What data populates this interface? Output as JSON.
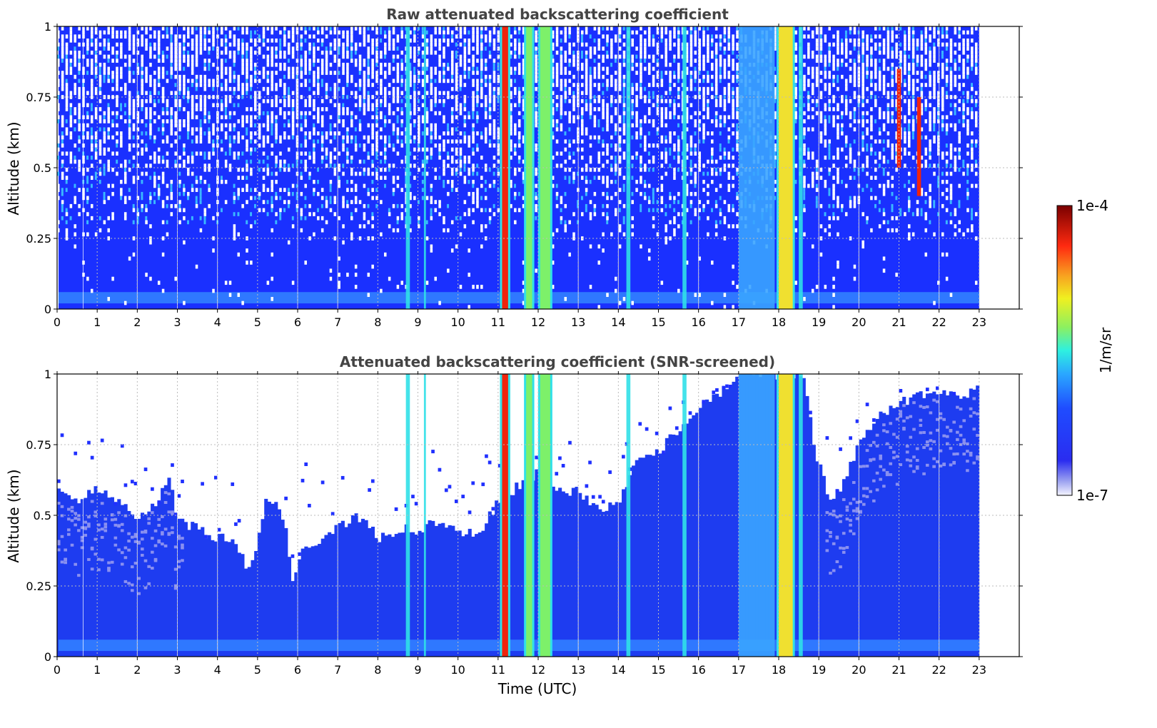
{
  "chart_data": [
    {
      "type": "heatmap",
      "title": "Raw attenuated backscattering coefficient",
      "xlabel": "",
      "ylabel": "Altitude (km)",
      "xlim": [
        0,
        24
      ],
      "ylim": [
        0,
        1
      ],
      "x_ticks": [
        "0",
        "1",
        "2",
        "3",
        "4",
        "5",
        "6",
        "7",
        "8",
        "9",
        "10",
        "11",
        "12",
        "13",
        "14",
        "15",
        "16",
        "17",
        "18",
        "19",
        "20",
        "21",
        "22",
        "23"
      ],
      "y_ticks": [
        "0",
        "0.25",
        "0.5",
        "0.75",
        "1"
      ],
      "data_end_hour": 23,
      "grid": true,
      "noise_top_fraction": 1.0,
      "features": [
        {
          "kind": "strong-column",
          "start": 11.1,
          "end": 11.25,
          "level": "red"
        },
        {
          "kind": "strong-column",
          "start": 11.7,
          "end": 11.85,
          "level": "green"
        },
        {
          "kind": "strong-column",
          "start": 12.05,
          "end": 12.3,
          "level": "green"
        },
        {
          "kind": "strong-column",
          "start": 18.0,
          "end": 18.35,
          "level": "yellow"
        },
        {
          "kind": "column",
          "start": 8.7,
          "end": 8.8,
          "level": "cyan"
        },
        {
          "kind": "column",
          "start": 9.15,
          "end": 9.2,
          "level": "cyan"
        },
        {
          "kind": "column",
          "start": 14.2,
          "end": 14.3,
          "level": "cyan"
        },
        {
          "kind": "column",
          "start": 15.6,
          "end": 15.7,
          "level": "cyan"
        },
        {
          "kind": "column",
          "start": 17.0,
          "end": 17.9,
          "level": "light-blue"
        },
        {
          "kind": "column",
          "start": 18.5,
          "end": 18.6,
          "level": "cyan"
        },
        {
          "kind": "cloud-streak",
          "start": 20.95,
          "end": 21.05,
          "ymin": 0.5,
          "ymax": 0.85,
          "level": "red"
        },
        {
          "kind": "cloud-streak",
          "start": 21.45,
          "end": 21.55,
          "ymin": 0.4,
          "ymax": 0.75,
          "level": "red"
        }
      ]
    },
    {
      "type": "heatmap",
      "title": "Attenuated backscattering coefficient (SNR-screened)",
      "xlabel": "Time (UTC)",
      "ylabel": "Altitude (km)",
      "xlim": [
        0,
        24
      ],
      "ylim": [
        0,
        1
      ],
      "x_ticks": [
        "0",
        "1",
        "2",
        "3",
        "4",
        "5",
        "6",
        "7",
        "8",
        "9",
        "10",
        "11",
        "12",
        "13",
        "14",
        "15",
        "16",
        "17",
        "18",
        "19",
        "20",
        "21",
        "22",
        "23"
      ],
      "y_ticks": [
        "0",
        "0.25",
        "0.5",
        "0.75",
        "1"
      ],
      "data_end_hour": 23,
      "grid": true,
      "screen_top_km": [
        [
          0,
          0.62
        ],
        [
          0.5,
          0.55
        ],
        [
          1,
          0.6
        ],
        [
          1.5,
          0.55
        ],
        [
          2,
          0.5
        ],
        [
          2.5,
          0.55
        ],
        [
          2.8,
          0.65
        ],
        [
          3,
          0.48
        ],
        [
          3.5,
          0.45
        ],
        [
          4,
          0.42
        ],
        [
          4.5,
          0.4
        ],
        [
          4.8,
          0.3
        ],
        [
          5,
          0.4
        ],
        [
          5.2,
          0.55
        ],
        [
          5.5,
          0.55
        ],
        [
          5.7,
          0.45
        ],
        [
          5.9,
          0.25
        ],
        [
          6.1,
          0.38
        ],
        [
          6.5,
          0.4
        ],
        [
          7,
          0.45
        ],
        [
          7.5,
          0.5
        ],
        [
          8,
          0.42
        ],
        [
          8.5,
          0.45
        ],
        [
          9,
          0.45
        ],
        [
          9.5,
          0.48
        ],
        [
          10,
          0.45
        ],
        [
          10.5,
          0.42
        ],
        [
          11,
          0.55
        ],
        [
          12,
          0.65
        ],
        [
          12.5,
          0.6
        ],
        [
          13,
          0.58
        ],
        [
          13.5,
          0.52
        ],
        [
          14,
          0.55
        ],
        [
          14.5,
          0.7
        ],
        [
          15,
          0.72
        ],
        [
          15.5,
          0.8
        ],
        [
          16,
          0.88
        ],
        [
          16.5,
          0.92
        ],
        [
          17,
          1.0
        ],
        [
          18.6,
          1.0
        ],
        [
          18.8,
          0.82
        ],
        [
          19,
          0.68
        ],
        [
          19.3,
          0.55
        ],
        [
          19.6,
          0.6
        ],
        [
          20,
          0.75
        ],
        [
          20.5,
          0.85
        ],
        [
          21,
          0.9
        ],
        [
          21.5,
          0.92
        ],
        [
          22,
          0.95
        ],
        [
          22.5,
          0.92
        ],
        [
          23,
          0.95
        ]
      ],
      "features": [
        {
          "kind": "strong-column",
          "start": 11.1,
          "end": 11.25,
          "level": "red"
        },
        {
          "kind": "strong-column",
          "start": 11.7,
          "end": 11.85,
          "level": "green"
        },
        {
          "kind": "strong-column",
          "start": 12.05,
          "end": 12.3,
          "level": "green"
        },
        {
          "kind": "strong-column",
          "start": 18.0,
          "end": 18.35,
          "level": "yellow"
        },
        {
          "kind": "column",
          "start": 8.7,
          "end": 8.8,
          "level": "cyan"
        },
        {
          "kind": "column",
          "start": 9.15,
          "end": 9.2,
          "level": "cyan"
        },
        {
          "kind": "column",
          "start": 14.2,
          "end": 14.3,
          "level": "cyan"
        },
        {
          "kind": "column",
          "start": 15.6,
          "end": 15.7,
          "level": "cyan"
        },
        {
          "kind": "column",
          "start": 17.0,
          "end": 17.9,
          "level": "light-blue"
        },
        {
          "kind": "column",
          "start": 18.5,
          "end": 18.6,
          "level": "cyan"
        }
      ]
    }
  ],
  "colorbar": {
    "label": "1/m/sr",
    "min_label": "1e-7",
    "max_label": "1e-4",
    "scale": "log"
  },
  "colors": {
    "background": "#ffffff",
    "base": "#1e3cff",
    "noise_dark": "#0010d8",
    "grid": "#bbbbbb",
    "title": "#444444"
  }
}
